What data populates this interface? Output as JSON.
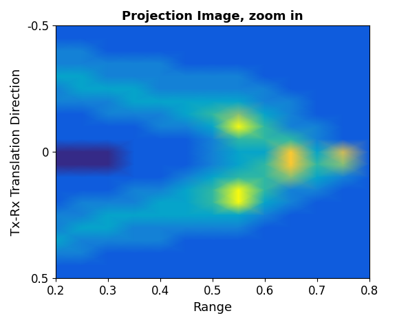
{
  "chart_data": {
    "type": "heatmap",
    "title": "Projection Image, zoom in",
    "x_label": "Range",
    "y_label": "Tx-Rx Translation Direction",
    "x": [
      0.2,
      0.25,
      0.3,
      0.35,
      0.4,
      0.45,
      0.5,
      0.55,
      0.6,
      0.65,
      0.7,
      0.75,
      0.8
    ],
    "y": [
      -0.5,
      -0.45,
      -0.4,
      -0.35,
      -0.3,
      -0.25,
      -0.2,
      -0.15,
      -0.1,
      -0.05,
      0,
      0.05,
      0.1,
      0.15,
      0.2,
      0.25,
      0.3,
      0.35,
      0.4,
      0.45,
      0.5
    ],
    "cells": [
      [
        2,
        2,
        2,
        2,
        2,
        2,
        2,
        2,
        2,
        2,
        2,
        2,
        2
      ],
      [
        2,
        2,
        2,
        2,
        2,
        2,
        2,
        2,
        2,
        2,
        2,
        2,
        2
      ],
      [
        3,
        3,
        2,
        2,
        2,
        2,
        2,
        2,
        2,
        2,
        2,
        2,
        2
      ],
      [
        3,
        3,
        3,
        3,
        3,
        2,
        2,
        2,
        2,
        2,
        2,
        2,
        2
      ],
      [
        4,
        4,
        3,
        3,
        3,
        3,
        3,
        3,
        2,
        2,
        2,
        2,
        2
      ],
      [
        3,
        4,
        4,
        4,
        3,
        3,
        3,
        3,
        3,
        2,
        2,
        2,
        2
      ],
      [
        3,
        3,
        3,
        4,
        4,
        4,
        4,
        4,
        3,
        3,
        2,
        2,
        2
      ],
      [
        2,
        2,
        3,
        3,
        3,
        4,
        5,
        6,
        4,
        3,
        2,
        2,
        2
      ],
      [
        2,
        2,
        2,
        2,
        3,
        3,
        4,
        9,
        5,
        3,
        3,
        2,
        2
      ],
      [
        2,
        2,
        2,
        2,
        2,
        2,
        3,
        5,
        5,
        5,
        3,
        2,
        2
      ],
      [
        1,
        1,
        1,
        2,
        2,
        2,
        3,
        4,
        4,
        8,
        4,
        7,
        2
      ],
      [
        1,
        1,
        1,
        2,
        2,
        2,
        3,
        4,
        5,
        8,
        5,
        6,
        2
      ],
      [
        2,
        2,
        2,
        2,
        2,
        3,
        4,
        5,
        5,
        6,
        4,
        3,
        2
      ],
      [
        2,
        2,
        2,
        3,
        3,
        4,
        5,
        9,
        5,
        3,
        3,
        2,
        2
      ],
      [
        2,
        3,
        3,
        3,
        4,
        4,
        5,
        9,
        4,
        3,
        2,
        2,
        2
      ],
      [
        3,
        3,
        4,
        4,
        4,
        4,
        4,
        4,
        3,
        2,
        2,
        2,
        2
      ],
      [
        3,
        4,
        4,
        3,
        3,
        3,
        3,
        3,
        2,
        2,
        2,
        2,
        2
      ],
      [
        4,
        3,
        3,
        3,
        3,
        2,
        2,
        2,
        2,
        2,
        2,
        2,
        2
      ],
      [
        3,
        3,
        2,
        2,
        2,
        2,
        2,
        2,
        2,
        2,
        2,
        2,
        2
      ],
      [
        2,
        2,
        2,
        2,
        2,
        2,
        2,
        2,
        2,
        2,
        2,
        2,
        2
      ],
      [
        2,
        2,
        2,
        2,
        2,
        2,
        2,
        2,
        2,
        2,
        2,
        2,
        2
      ]
    ],
    "xlim": [
      0.2,
      0.8
    ],
    "xticks": [
      0.2,
      0.3,
      0.4,
      0.5,
      0.6,
      0.7,
      0.8
    ],
    "ylim": [
      0.5,
      -0.5
    ],
    "yticks": [
      -0.5,
      0,
      0.5
    ]
  }
}
